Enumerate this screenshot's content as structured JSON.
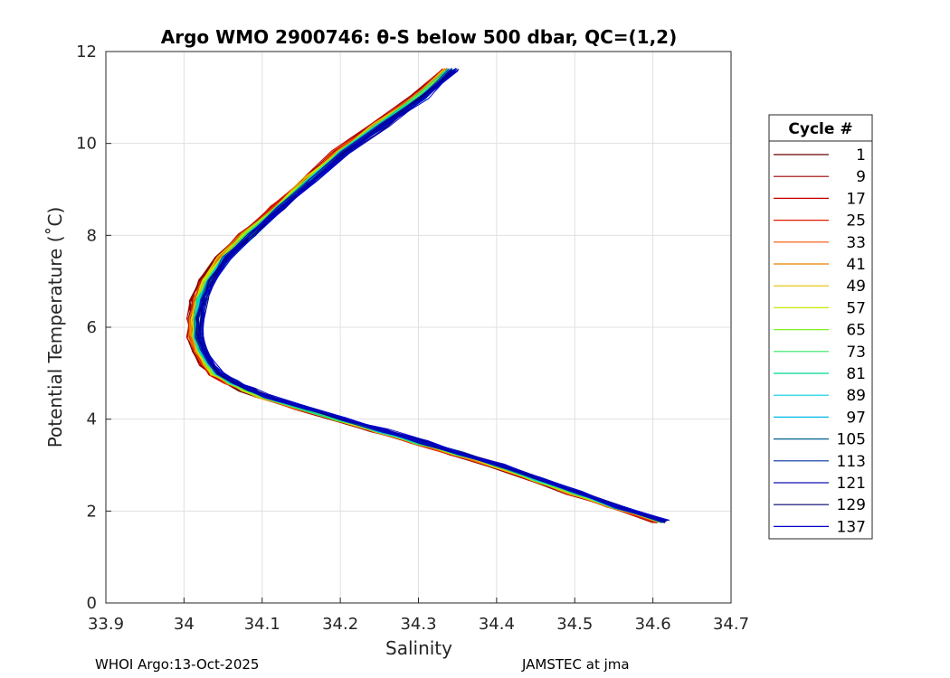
{
  "chart_data": {
    "type": "line",
    "title": "Argo WMO 2900746: θ-S below 500 dbar,  QC=(1,2)",
    "xlabel": "Salinity",
    "ylabel": "Potential Temperature (˚C)",
    "xlim": [
      33.9,
      34.7
    ],
    "ylim": [
      0,
      12
    ],
    "xticks": [
      "33.9",
      "34",
      "34.1",
      "34.2",
      "34.3",
      "34.4",
      "34.5",
      "34.6",
      "34.7"
    ],
    "yticks": [
      "0",
      "2",
      "4",
      "6",
      "8",
      "10",
      "12"
    ],
    "grid": true,
    "legend": {
      "title": "Cycle #",
      "placement": "right",
      "entries": [
        "1",
        "9",
        "17",
        "25",
        "33",
        "41",
        "49",
        "57",
        "65",
        "73",
        "81",
        "89",
        "97",
        "105",
        "113",
        "121",
        "129",
        "137"
      ]
    },
    "colors": [
      "#6a0000",
      "#9a0000",
      "#c80000",
      "#e21a00",
      "#f05000",
      "#e88000",
      "#e8c000",
      "#c8e800",
      "#80f020",
      "#30e860",
      "#00d898",
      "#00d0e0",
      "#00b8e8",
      "#006090",
      "#0030a0",
      "#1010b0",
      "#000070",
      "#0000c8"
    ],
    "series_template": {
      "description_units": "salinity / potential temperature",
      "x": [
        34.61,
        34.55,
        34.5,
        34.45,
        34.4,
        34.35,
        34.3,
        34.25,
        34.2,
        34.15,
        34.1,
        34.08,
        34.06,
        34.04,
        34.03,
        34.02,
        34.015,
        34.015,
        34.02,
        34.03,
        34.05,
        34.08,
        34.12,
        34.16,
        34.2,
        34.25,
        34.3,
        34.34
      ],
      "y": [
        1.78,
        2.1,
        2.4,
        2.7,
        3.0,
        3.25,
        3.5,
        3.75,
        4.0,
        4.25,
        4.5,
        4.65,
        4.8,
        5.0,
        5.2,
        5.5,
        5.8,
        6.2,
        6.6,
        7.0,
        7.5,
        8.0,
        8.6,
        9.2,
        9.8,
        10.4,
        11.0,
        11.6
      ]
    }
  },
  "footer": {
    "left": "WHOI Argo:13-Oct-2025",
    "right": "JAMSTEC at jma"
  }
}
